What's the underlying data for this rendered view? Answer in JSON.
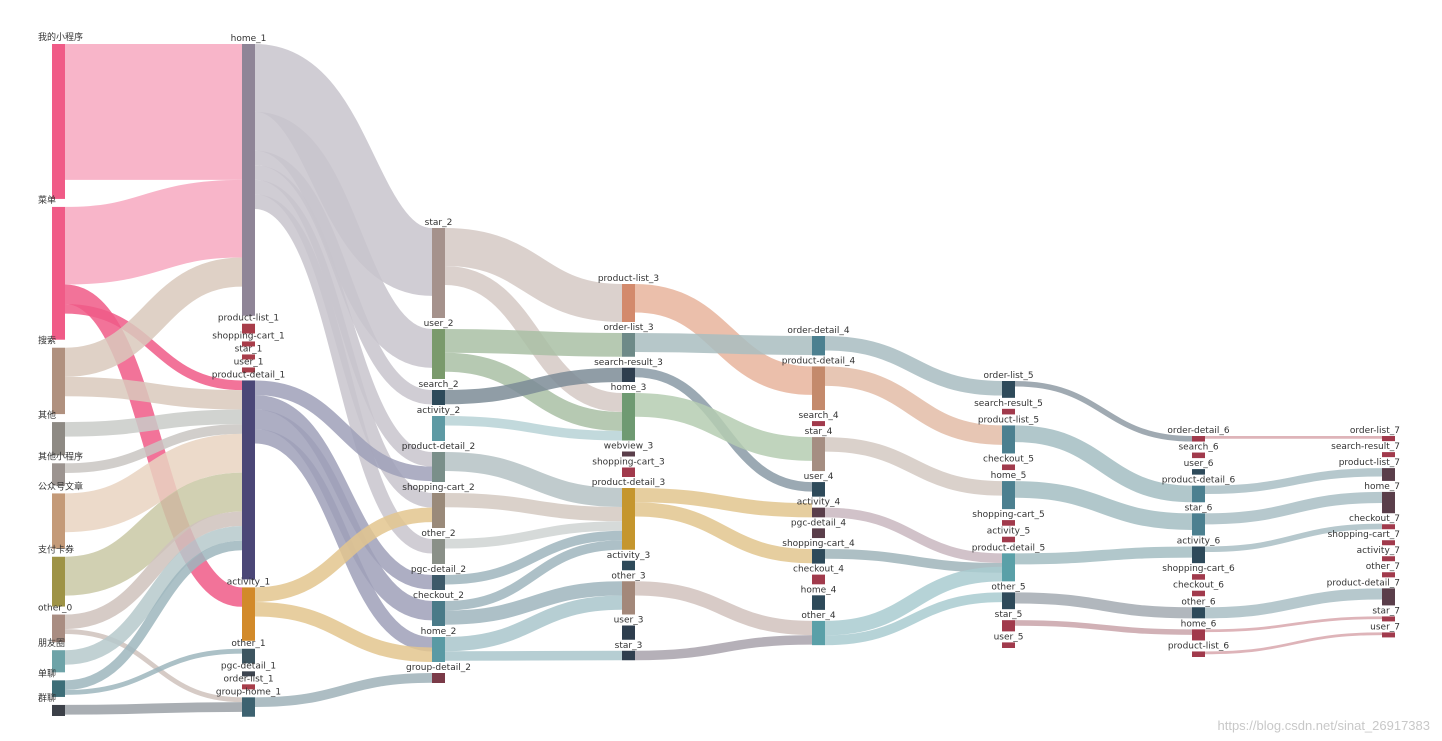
{
  "chart_data": {
    "type": "sankey",
    "title": "",
    "columns": [
      [
        "我的小程序",
        "菜单",
        "搜索",
        "其他",
        "其他小程序",
        "公众号文章",
        "支付卡券",
        "other_0",
        "朋友圈",
        "单聊",
        "群聊"
      ],
      [
        "home_1",
        "product-list_1",
        "shopping-cart_1",
        "star_1",
        "user_1",
        "product-detail_1",
        "activity_1",
        "other_1",
        "pgc-detail_1",
        "order-list_1",
        "group-home_1"
      ],
      [
        "star_2",
        "user_2",
        "search_2",
        "activity_2",
        "product-detail_2",
        "shopping-cart_2",
        "other_2",
        "pgc-detail_2",
        "checkout_2",
        "home_2",
        "group-detail_2"
      ],
      [
        "product-list_3",
        "order-list_3",
        "search-result_3",
        "home_3",
        "webview_3",
        "shopping-cart_3",
        "product-detail_3",
        "activity_3",
        "other_3",
        "user_3",
        "star_3"
      ],
      [
        "order-detail_4",
        "product-detail_4",
        "search_4",
        "star_4",
        "user_4",
        "activity_4",
        "pgc-detail_4",
        "shopping-cart_4",
        "checkout_4",
        "home_4",
        "other_4"
      ],
      [
        "order-list_5",
        "search-result_5",
        "product-list_5",
        "checkout_5",
        "home_5",
        "shopping-cart_5",
        "activity_5",
        "product-detail_5",
        "other_5",
        "star_5",
        "user_5"
      ],
      [
        "order-detail_6",
        "search_6",
        "user_6",
        "product-detail_6",
        "star_6",
        "activity_6",
        "shopping-cart_6",
        "checkout_6",
        "other_6",
        "home_6",
        "product-list_6"
      ],
      [
        "order-list_7",
        "search-result_7",
        "product-list_7",
        "home_7",
        "checkout_7",
        "shopping-cart_7",
        "activity_7",
        "other_7",
        "product-detail_7",
        "star_7",
        "user_7"
      ]
    ],
    "node_values": [
      [
        28,
        24,
        12,
        6,
        4,
        10,
        9,
        5,
        4,
        3,
        2
      ],
      [
        56,
        2,
        1,
        1,
        1,
        41,
        11,
        3,
        1,
        1,
        4
      ],
      [
        18,
        10,
        3,
        5,
        6,
        7,
        5,
        3,
        5,
        5,
        2
      ],
      [
        8,
        5,
        3,
        10,
        1,
        2,
        13,
        2,
        7,
        3,
        2
      ],
      [
        4,
        9,
        1,
        7,
        3,
        2,
        2,
        3,
        2,
        3,
        5
      ],
      [
        3,
        1,
        5,
        1,
        5,
        1,
        1,
        5,
        3,
        2,
        1
      ],
      [
        1,
        1,
        1,
        3,
        4,
        3,
        1,
        1,
        2,
        2,
        1
      ],
      [
        0.6,
        0.5,
        1.5,
        2.5,
        0.5,
        0.5,
        0.5,
        0.6,
        2,
        0.5,
        0.5
      ]
    ],
    "links": [
      [
        0,
        0,
        1,
        0,
        28,
        "#f7a8bf"
      ],
      [
        0,
        1,
        1,
        0,
        16,
        "#f7a8bf"
      ],
      [
        0,
        1,
        1,
        6,
        4,
        "#f05b87"
      ],
      [
        0,
        1,
        1,
        5,
        2,
        "#f05b87"
      ],
      [
        0,
        2,
        1,
        0,
        6,
        "#d9c9bc"
      ],
      [
        0,
        2,
        1,
        5,
        4,
        "#d9c9bc"
      ],
      [
        0,
        3,
        1,
        5,
        3,
        "#c9cbc8"
      ],
      [
        0,
        4,
        1,
        5,
        2,
        "#c9c6c2"
      ],
      [
        0,
        5,
        1,
        5,
        8,
        "#e9d3c1"
      ],
      [
        0,
        6,
        1,
        5,
        8,
        "#c9c8a4"
      ],
      [
        0,
        7,
        1,
        5,
        3,
        "#cfc2bc"
      ],
      [
        0,
        7,
        1,
        10,
        1,
        "#cfc2bc"
      ],
      [
        0,
        8,
        1,
        5,
        3,
        "#b6c9cb"
      ],
      [
        0,
        9,
        1,
        5,
        2,
        "#9eb6bd"
      ],
      [
        0,
        9,
        1,
        7,
        1,
        "#9eb6bd"
      ],
      [
        0,
        10,
        1,
        10,
        2,
        "#9aa0a6"
      ],
      [
        1,
        0,
        2,
        0,
        14,
        "#c8c4cc"
      ],
      [
        1,
        0,
        2,
        1,
        8,
        "#c8c4cc"
      ],
      [
        1,
        0,
        2,
        2,
        3,
        "#c8c4cc"
      ],
      [
        1,
        0,
        2,
        4,
        3,
        "#c8c4cc"
      ],
      [
        1,
        0,
        2,
        5,
        3,
        "#c8c4cc"
      ],
      [
        1,
        0,
        2,
        6,
        3,
        "#c8c4cc"
      ],
      [
        1,
        5,
        2,
        4,
        3,
        "#9fa0b8"
      ],
      [
        1,
        5,
        2,
        7,
        3,
        "#9fa0b8"
      ],
      [
        1,
        5,
        2,
        8,
        4,
        "#9fa0b8"
      ],
      [
        1,
        5,
        2,
        9,
        3,
        "#9fa0b8"
      ],
      [
        1,
        6,
        2,
        5,
        3,
        "#e3c68e"
      ],
      [
        1,
        6,
        2,
        9,
        3,
        "#e3c68e"
      ],
      [
        1,
        10,
        2,
        10,
        2,
        "#9fb2b8"
      ],
      [
        2,
        0,
        3,
        0,
        8,
        "#d5c9c4"
      ],
      [
        2,
        0,
        3,
        3,
        4,
        "#d5c9c4"
      ],
      [
        2,
        1,
        3,
        1,
        5,
        "#a9c0a4"
      ],
      [
        2,
        1,
        3,
        3,
        4,
        "#a9c0a4"
      ],
      [
        2,
        2,
        3,
        2,
        3,
        "#7d8c96"
      ],
      [
        2,
        3,
        3,
        3,
        2,
        "#b7d2d6"
      ],
      [
        2,
        4,
        3,
        6,
        4,
        "#b5c2c4"
      ],
      [
        2,
        5,
        3,
        6,
        3,
        "#d3c9c1"
      ],
      [
        2,
        6,
        3,
        6,
        2,
        "#cfd3d2"
      ],
      [
        2,
        7,
        3,
        6,
        2,
        "#9fb5bd"
      ],
      [
        2,
        8,
        3,
        6,
        2,
        "#9fb5bd"
      ],
      [
        2,
        8,
        3,
        8,
        3,
        "#9fb5bd"
      ],
      [
        2,
        9,
        3,
        8,
        3,
        "#a9c6cb"
      ],
      [
        2,
        9,
        3,
        10,
        2,
        "#a9c6cb"
      ],
      [
        3,
        0,
        4,
        1,
        6,
        "#e8b49c"
      ],
      [
        3,
        1,
        4,
        0,
        4,
        "#a9bdc0"
      ],
      [
        3,
        2,
        4,
        4,
        2,
        "#8a9aa6"
      ],
      [
        3,
        3,
        4,
        3,
        5,
        "#b5cdb1"
      ],
      [
        3,
        6,
        4,
        5,
        3,
        "#e2c58e"
      ],
      [
        3,
        6,
        4,
        7,
        3,
        "#e2c58e"
      ],
      [
        3,
        8,
        4,
        10,
        3,
        "#d1c2bd"
      ],
      [
        3,
        10,
        4,
        10,
        2,
        "#a8a2ac"
      ],
      [
        4,
        0,
        5,
        0,
        3,
        "#a8bcc1"
      ],
      [
        4,
        1,
        5,
        2,
        4,
        "#e3bca7"
      ],
      [
        4,
        3,
        5,
        4,
        3,
        "#d3c9c2"
      ],
      [
        4,
        5,
        5,
        7,
        2,
        "#c9b7c0"
      ],
      [
        4,
        7,
        5,
        7,
        2,
        "#9fb4ba"
      ],
      [
        4,
        10,
        5,
        7,
        3,
        "#a9cbd0"
      ],
      [
        4,
        10,
        5,
        8,
        2,
        "#a9cbd0"
      ],
      [
        5,
        0,
        6,
        0,
        1,
        "#8f9ba4"
      ],
      [
        5,
        2,
        6,
        3,
        3,
        "#a3bdc2"
      ],
      [
        5,
        4,
        6,
        4,
        3,
        "#a3bdc2"
      ],
      [
        5,
        7,
        6,
        5,
        2,
        "#a3bdc2"
      ],
      [
        5,
        8,
        6,
        8,
        2,
        "#a3aab2"
      ],
      [
        5,
        9,
        6,
        9,
        1,
        "#c9a3a9"
      ],
      [
        6,
        0,
        7,
        0,
        0.5,
        "#d8a7ad"
      ],
      [
        6,
        3,
        7,
        2,
        1.5,
        "#a9bec4"
      ],
      [
        6,
        4,
        7,
        3,
        2,
        "#a9bec4"
      ],
      [
        6,
        5,
        7,
        4,
        1,
        "#a9bec4"
      ],
      [
        6,
        8,
        7,
        8,
        2,
        "#a9bec4"
      ],
      [
        6,
        9,
        7,
        9,
        0.5,
        "#d8a7ad"
      ],
      [
        6,
        10,
        7,
        10,
        0.5,
        "#d8a7ad"
      ]
    ],
    "node_colors": [
      [
        "#f05b87",
        "#f05b87",
        "#b0917f",
        "#8e8a84",
        "#9c9490",
        "#c49a78",
        "#9e9346",
        "#a98d82",
        "#6ea3a8",
        "#3d6e78",
        "#3c4048"
      ],
      [
        "#8f8597",
        "#a83d4a",
        "#a83d4a",
        "#a83d4a",
        "#a83d4a",
        "#4b4777",
        "#d28a2a",
        "#3d5560",
        "#3d4550",
        "#a83d4a",
        "#3d6270"
      ],
      [
        "#a5928c",
        "#7a9a6c",
        "#2e4a5a",
        "#5e9aa4",
        "#7a8f8a",
        "#9a8a7a",
        "#8a9088",
        "#3e5a6a",
        "#4a7a88",
        "#5a9aa4",
        "#7a3a48"
      ],
      [
        "#d38a6c",
        "#6e8a88",
        "#2e3e4e",
        "#6f9a72",
        "#5a3e4a",
        "#a13a4c",
        "#c5962e",
        "#2e4a5a",
        "#a3887a",
        "#2e3e4e",
        "#2e3e4e"
      ],
      [
        "#4c8090",
        "#c48a6c",
        "#a13a4c",
        "#a58e82",
        "#2e4a5a",
        "#5a3e4a",
        "#5a3e4a",
        "#2e4a5a",
        "#a13a4c",
        "#2e4a5a",
        "#5aa0a8"
      ],
      [
        "#2e4a5a",
        "#a13a4c",
        "#4c8090",
        "#a13a4c",
        "#4c8090",
        "#a13a4c",
        "#a13a4c",
        "#5aa0a8",
        "#2e4a5a",
        "#a13a4c",
        "#a13a4c"
      ],
      [
        "#a13a4c",
        "#a13a4c",
        "#2e4a5a",
        "#4c8090",
        "#4c8090",
        "#2e4a5a",
        "#a13a4c",
        "#a13a4c",
        "#2e4a5a",
        "#a13a4c",
        "#a13a4c"
      ],
      [
        "#a13a4c",
        "#a13a4c",
        "#5a3e4a",
        "#5a3e4a",
        "#a13a4c",
        "#a13a4c",
        "#a13a4c",
        "#a13a4c",
        "#5a3e4a",
        "#a13a4c",
        "#a13a4c"
      ]
    ],
    "axes": "none",
    "grid": false,
    "legend": "none"
  },
  "watermark": "https://blog.csdn.net/sinat_26917383"
}
